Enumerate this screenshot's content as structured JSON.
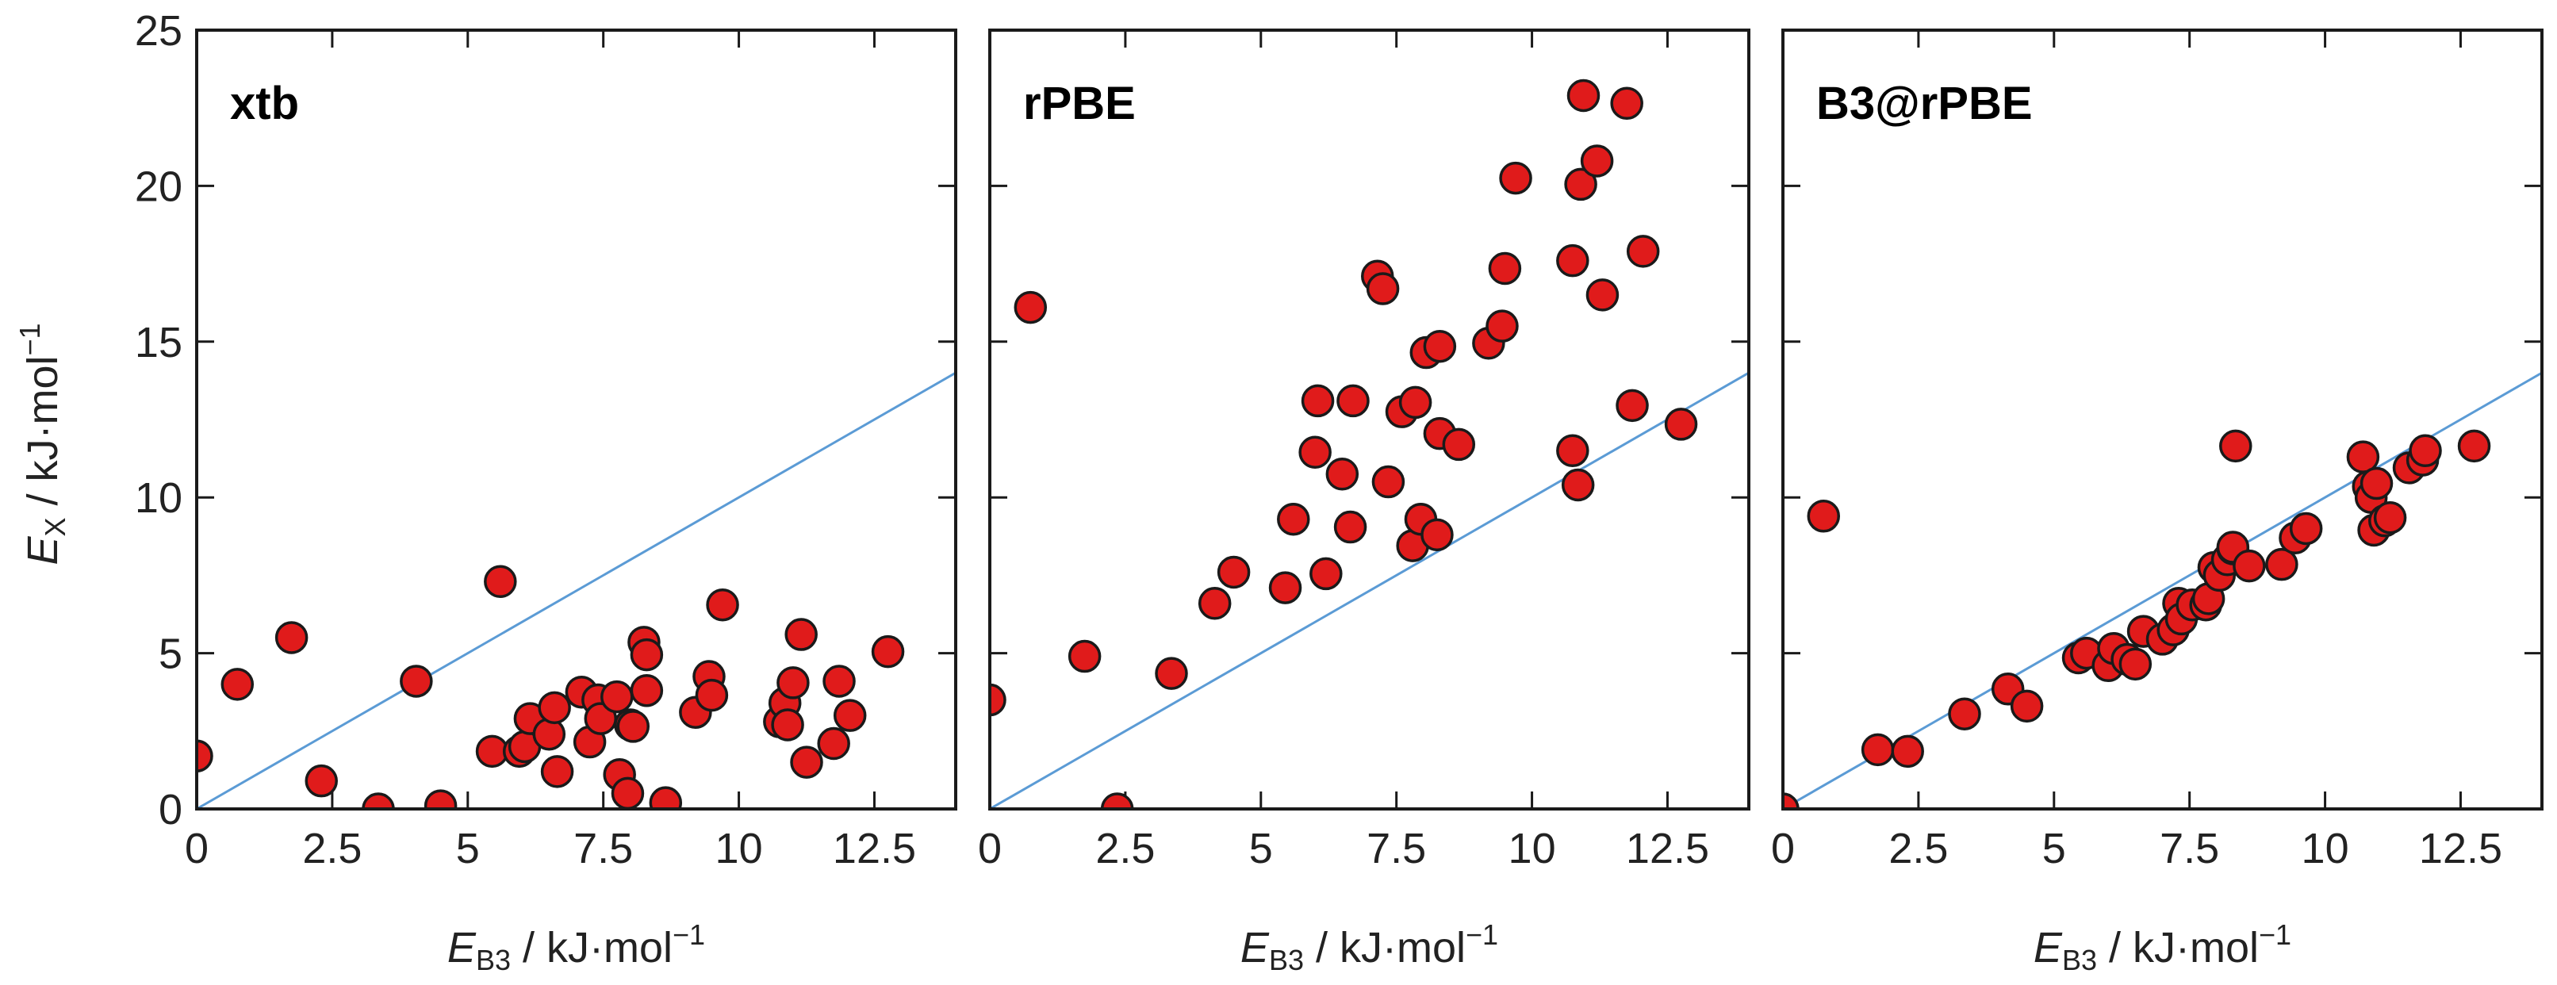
{
  "figure": {
    "colors": {
      "marker_fill": "#e01b1b",
      "marker_edge": "#1a1a1a",
      "reference_line": "#5b9bd5"
    },
    "y_axis_label": {
      "var": "E",
      "sub": "X",
      "unit": " / kJ·mol",
      "sup": "−1"
    },
    "x_axis_label": {
      "var": "E",
      "sub": "B3",
      "unit": " / kJ·mol",
      "sup": "−1"
    }
  },
  "chart_data": [
    {
      "type": "scatter",
      "title": "xtb",
      "xlabel": "E_B3 / kJ·mol⁻¹",
      "ylabel": "E_X / kJ·mol⁻¹",
      "xlim": [
        0,
        14
      ],
      "ylim": [
        0,
        25
      ],
      "xticks": [
        0,
        2.5,
        5,
        7.5,
        10,
        12.5
      ],
      "xtick_labels": [
        "0",
        "2.5",
        "5",
        "7.5",
        "10",
        "12.5"
      ],
      "yticks": [
        0,
        5,
        10,
        15,
        20,
        25
      ],
      "ytick_labels": [
        "0",
        "5",
        "10",
        "15",
        "20",
        "25"
      ],
      "reference_line": {
        "x": [
          0,
          14
        ],
        "y": [
          0,
          14
        ]
      },
      "x": [
        0.0,
        0.75,
        1.75,
        2.3,
        3.35,
        4.05,
        4.5,
        5.45,
        5.6,
        5.95,
        6.05,
        6.15,
        6.5,
        6.6,
        6.65,
        7.1,
        7.25,
        7.4,
        7.45,
        7.75,
        7.8,
        7.95,
        8.0,
        8.05,
        8.25,
        8.3,
        8.3,
        8.65,
        9.2,
        9.45,
        9.5,
        9.7,
        10.75,
        10.85,
        10.9,
        11.0,
        11.15,
        11.25,
        11.75,
        11.85,
        12.05,
        12.75
      ],
      "y": [
        1.7,
        4.0,
        5.5,
        0.9,
        0.0,
        4.1,
        0.1,
        1.85,
        7.3,
        1.85,
        2.0,
        2.9,
        2.4,
        3.25,
        1.2,
        3.75,
        2.15,
        3.5,
        2.9,
        3.6,
        1.1,
        0.5,
        2.7,
        2.65,
        5.35,
        3.8,
        4.95,
        0.2,
        3.1,
        4.25,
        3.65,
        6.55,
        2.8,
        3.4,
        2.7,
        4.05,
        5.6,
        1.5,
        2.1,
        4.1,
        3.0,
        5.05
      ]
    },
    {
      "type": "scatter",
      "title": "rPBE",
      "xlabel": "E_B3 / kJ·mol⁻¹",
      "xlim": [
        0,
        14
      ],
      "ylim": [
        0,
        25
      ],
      "xticks": [
        0,
        2.5,
        5,
        7.5,
        10,
        12.5
      ],
      "xtick_labels": [
        "0",
        "2.5",
        "5",
        "7.5",
        "10",
        "12.5"
      ],
      "reference_line": {
        "x": [
          0,
          14
        ],
        "y": [
          0,
          14
        ]
      },
      "x": [
        0.0,
        0.75,
        1.75,
        2.35,
        3.35,
        4.15,
        4.5,
        5.45,
        5.6,
        6.0,
        6.05,
        6.2,
        6.5,
        6.65,
        6.7,
        7.15,
        7.25,
        7.35,
        7.6,
        7.8,
        7.85,
        7.95,
        8.05,
        8.25,
        8.3,
        8.3,
        8.65,
        9.2,
        9.45,
        9.5,
        9.7,
        10.75,
        10.75,
        10.85,
        10.9,
        10.95,
        11.2,
        11.3,
        11.75,
        11.85,
        12.05,
        12.75
      ],
      "y": [
        3.5,
        16.1,
        4.9,
        0.0,
        4.35,
        6.6,
        7.6,
        7.1,
        9.3,
        11.45,
        13.1,
        7.55,
        10.75,
        9.05,
        13.1,
        17.1,
        16.7,
        10.5,
        12.75,
        8.45,
        13.05,
        9.3,
        14.65,
        8.8,
        14.85,
        12.05,
        11.7,
        14.95,
        15.5,
        17.35,
        20.25,
        17.6,
        11.5,
        10.4,
        20.05,
        22.9,
        20.8,
        16.5,
        22.65,
        12.95,
        17.9,
        12.35
      ]
    },
    {
      "type": "scatter",
      "title": "B3@rPBE",
      "xlabel": "E_B3 / kJ·mol⁻¹",
      "xlim": [
        0,
        14
      ],
      "ylim": [
        0,
        25
      ],
      "xticks": [
        0,
        2.5,
        5,
        7.5,
        10,
        12.5
      ],
      "xtick_labels": [
        "0",
        "2.5",
        "5",
        "7.5",
        "10",
        "12.5"
      ],
      "reference_line": {
        "x": [
          0,
          14
        ],
        "y": [
          0,
          14
        ]
      },
      "x": [
        0.0,
        0.75,
        1.75,
        2.3,
        3.35,
        4.15,
        4.5,
        5.45,
        5.6,
        6.0,
        6.1,
        6.35,
        6.5,
        6.65,
        7.0,
        7.2,
        7.3,
        7.35,
        7.55,
        7.8,
        7.85,
        7.95,
        8.05,
        8.2,
        8.3,
        8.3,
        8.35,
        8.6,
        9.2,
        9.45,
        9.65,
        10.7,
        10.8,
        10.85,
        10.9,
        10.95,
        11.1,
        11.2,
        11.55,
        11.8,
        11.85,
        12.75
      ],
      "y": [
        0.0,
        9.4,
        1.9,
        1.85,
        3.05,
        3.85,
        3.3,
        4.85,
        5.0,
        4.6,
        5.15,
        4.8,
        4.65,
        5.7,
        5.45,
        5.75,
        6.6,
        6.1,
        6.55,
        6.55,
        6.75,
        7.75,
        7.5,
        8.0,
        8.35,
        8.4,
        11.65,
        7.8,
        7.85,
        8.7,
        9.0,
        11.3,
        10.35,
        10.0,
        8.95,
        10.45,
        9.25,
        9.35,
        10.95,
        11.2,
        11.5,
        11.65
      ]
    }
  ]
}
